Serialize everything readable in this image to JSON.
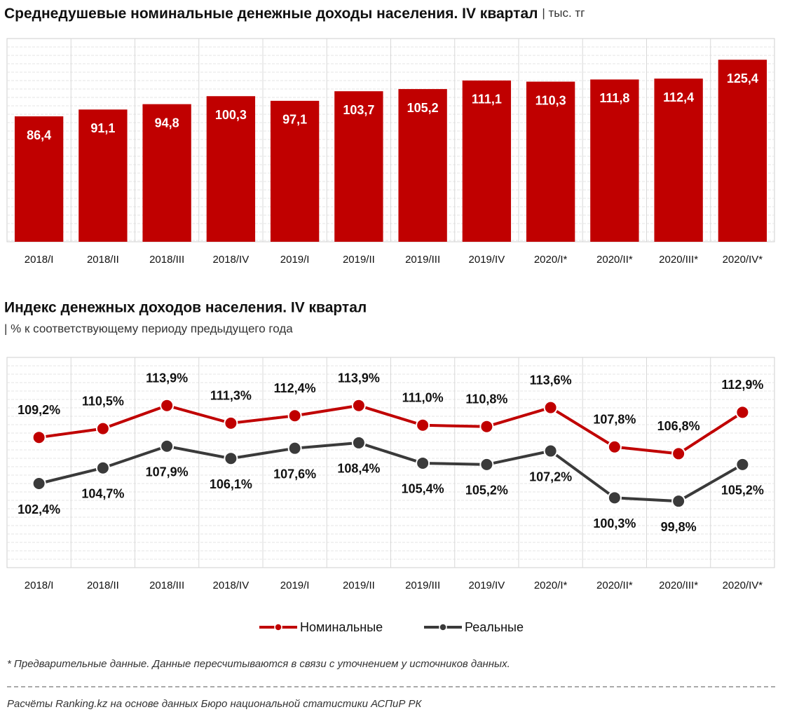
{
  "chart_data": [
    {
      "type": "bar",
      "title": "Среднедушевые номинальные денежные доходы населения. IV квартал",
      "subtitle": "| тыс. тг",
      "categories": [
        "2018/I",
        "2018/II",
        "2018/III",
        "2018/IV",
        "2019/I",
        "2019/II",
        "2019/III",
        "2019/IV",
        "2020/I*",
        "2020/II*",
        "2020/III*",
        "2020/IV*"
      ],
      "values": [
        86.4,
        91.1,
        94.8,
        100.3,
        97.1,
        103.7,
        105.2,
        111.1,
        110.3,
        111.8,
        112.4,
        125.4
      ],
      "value_labels": [
        "86,4",
        "91,1",
        "94,8",
        "100,3",
        "97,1",
        "103,7",
        "105,2",
        "111,1",
        "110,3",
        "111,8",
        "112,4",
        "125,4"
      ],
      "color": "#c00000",
      "ylim": [
        0,
        140
      ]
    },
    {
      "type": "line",
      "title": "Индекс денежных доходов населения. IV квартал",
      "subtitle": "| % к соответствующему периоду предыдущего года",
      "categories": [
        "2018/I",
        "2018/II",
        "2018/III",
        "2018/IV",
        "2019/I",
        "2019/II",
        "2019/III",
        "2019/IV",
        "2020/I*",
        "2020/II*",
        "2020/III*",
        "2020/IV*"
      ],
      "series": [
        {
          "name": "Номинальные",
          "color": "#c00000",
          "values": [
            109.2,
            110.5,
            113.9,
            111.3,
            112.4,
            113.9,
            111.0,
            110.8,
            113.6,
            107.8,
            106.8,
            112.9
          ],
          "value_labels": [
            "109,2%",
            "110,5%",
            "113,9%",
            "111,3%",
            "112,4%",
            "113,9%",
            "111,0%",
            "110,8%",
            "113,6%",
            "107,8%",
            "106,8%",
            "112,9%"
          ]
        },
        {
          "name": "Реальные",
          "color": "#3a3a3a",
          "values": [
            102.4,
            104.7,
            107.9,
            106.1,
            107.6,
            108.4,
            105.4,
            105.2,
            107.2,
            100.3,
            99.8,
            105.2
          ],
          "value_labels": [
            "102,4%",
            "104,7%",
            "107,9%",
            "106,1%",
            "107,6%",
            "108,4%",
            "105,4%",
            "105,2%",
            "107,2%",
            "100,3%",
            "99,8%",
            "105,2%"
          ]
        }
      ],
      "ylim": [
        90,
        121
      ]
    }
  ],
  "footnote": "* Предварительные данные. Данные пересчитываются в связи с уточнением у источников данных.",
  "source": "Расчёты Ranking.kz на основе данных Бюро национальной статистики АСПиР РК"
}
